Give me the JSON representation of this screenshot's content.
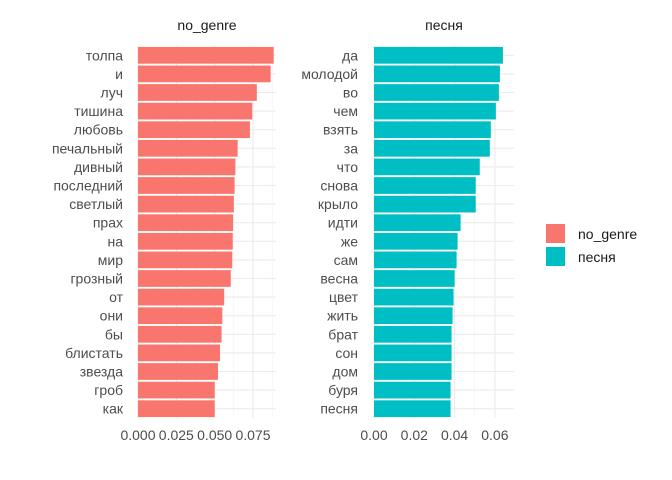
{
  "chart_data": {
    "type": "bar",
    "orientation": "horizontal",
    "grid": true,
    "legend_position": "right",
    "panels": [
      {
        "title": "no_genre",
        "color": "#F8766D",
        "xlim": [
          0,
          0.09
        ],
        "ticks": [
          0.0,
          0.025,
          0.05,
          0.075
        ],
        "tick_labels": [
          "0.000",
          "0.025",
          "0.050",
          "0.075"
        ],
        "categories": [
          "толпа",
          "и",
          "луч",
          "тишина",
          "любовь",
          "печальный",
          "дивный",
          "последний",
          "светлый",
          "прах",
          "на",
          "мир",
          "грозный",
          "от",
          "они",
          "бы",
          "блистать",
          "звезда",
          "гроб",
          "как"
        ],
        "values": [
          0.0885,
          0.0865,
          0.0775,
          0.0745,
          0.073,
          0.065,
          0.0635,
          0.063,
          0.0625,
          0.062,
          0.0618,
          0.0615,
          0.0605,
          0.0562,
          0.055,
          0.0545,
          0.0535,
          0.0522,
          0.05,
          0.05
        ]
      },
      {
        "title": "песня",
        "color": "#00BFC4",
        "xlim": [
          0,
          0.0695
        ],
        "ticks": [
          0.0,
          0.02,
          0.04,
          0.06
        ],
        "tick_labels": [
          "0.00",
          "0.02",
          "0.04",
          "0.06"
        ],
        "categories": [
          "да",
          "молодой",
          "во",
          "чем",
          "взять",
          "за",
          "что",
          "снова",
          "крыло",
          "идти",
          "же",
          "сам",
          "весна",
          "цвет",
          "жить",
          "брат",
          "сон",
          "дом",
          "буря",
          "песня"
        ],
        "values": [
          0.064,
          0.0625,
          0.062,
          0.0605,
          0.058,
          0.0575,
          0.0525,
          0.0505,
          0.0505,
          0.043,
          0.0415,
          0.041,
          0.04,
          0.0395,
          0.039,
          0.0385,
          0.0385,
          0.0385,
          0.038,
          0.038
        ]
      }
    ],
    "legend": {
      "entries": [
        {
          "label": "no_genre",
          "color": "#F8766D"
        },
        {
          "label": "песня",
          "color": "#00BFC4"
        }
      ]
    }
  }
}
